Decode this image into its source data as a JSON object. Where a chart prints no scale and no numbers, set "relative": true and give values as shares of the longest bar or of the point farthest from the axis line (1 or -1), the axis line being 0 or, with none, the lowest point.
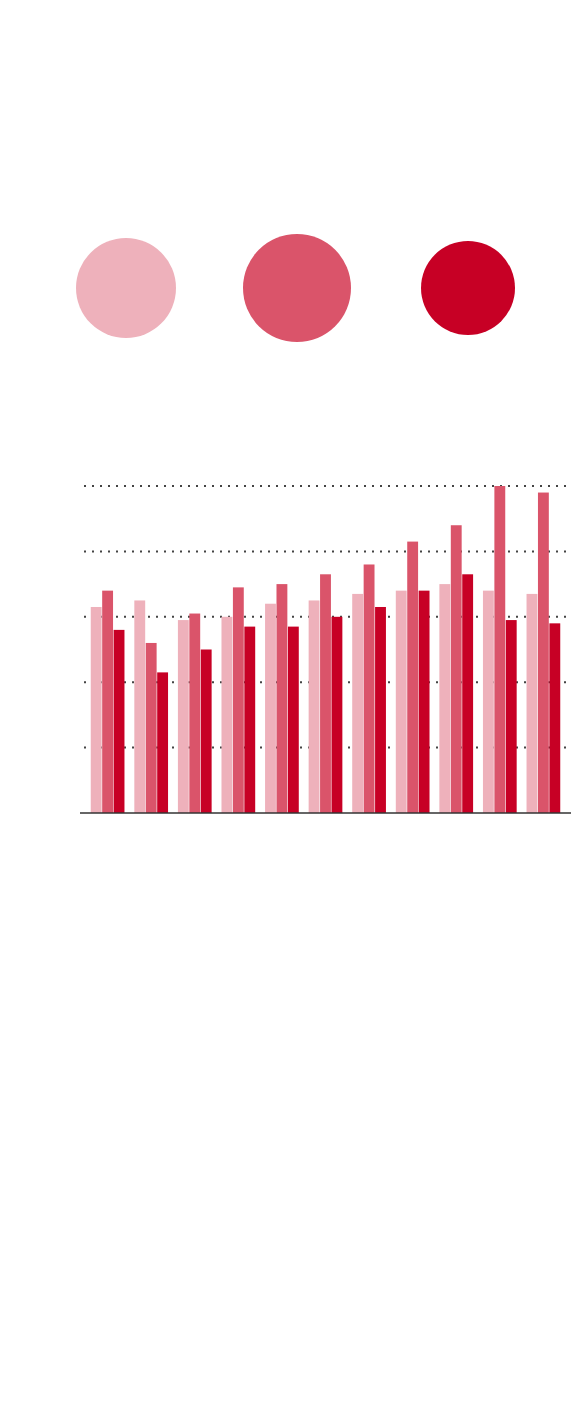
{
  "chart_data": {
    "type": "bar",
    "relative": true,
    "grid": true,
    "categories": [
      null,
      null,
      null,
      null,
      null,
      null,
      null,
      null,
      null,
      null,
      null
    ],
    "series": [
      {
        "color": "#eeb1bb",
        "values": [
          0.63,
          0.65,
          0.59,
          0.6,
          0.64,
          0.65,
          0.67,
          0.68,
          0.7,
          0.68,
          0.67
        ]
      },
      {
        "color": "#da546a",
        "values": [
          0.68,
          0.52,
          0.61,
          0.69,
          0.7,
          0.73,
          0.76,
          0.83,
          0.88,
          1,
          0.98
        ]
      },
      {
        "color": "#c70025",
        "values": [
          0.56,
          0.43,
          0.5,
          0.57,
          0.57,
          0.6,
          0.63,
          0.68,
          0.73,
          0.59,
          0.58
        ]
      }
    ]
  }
}
